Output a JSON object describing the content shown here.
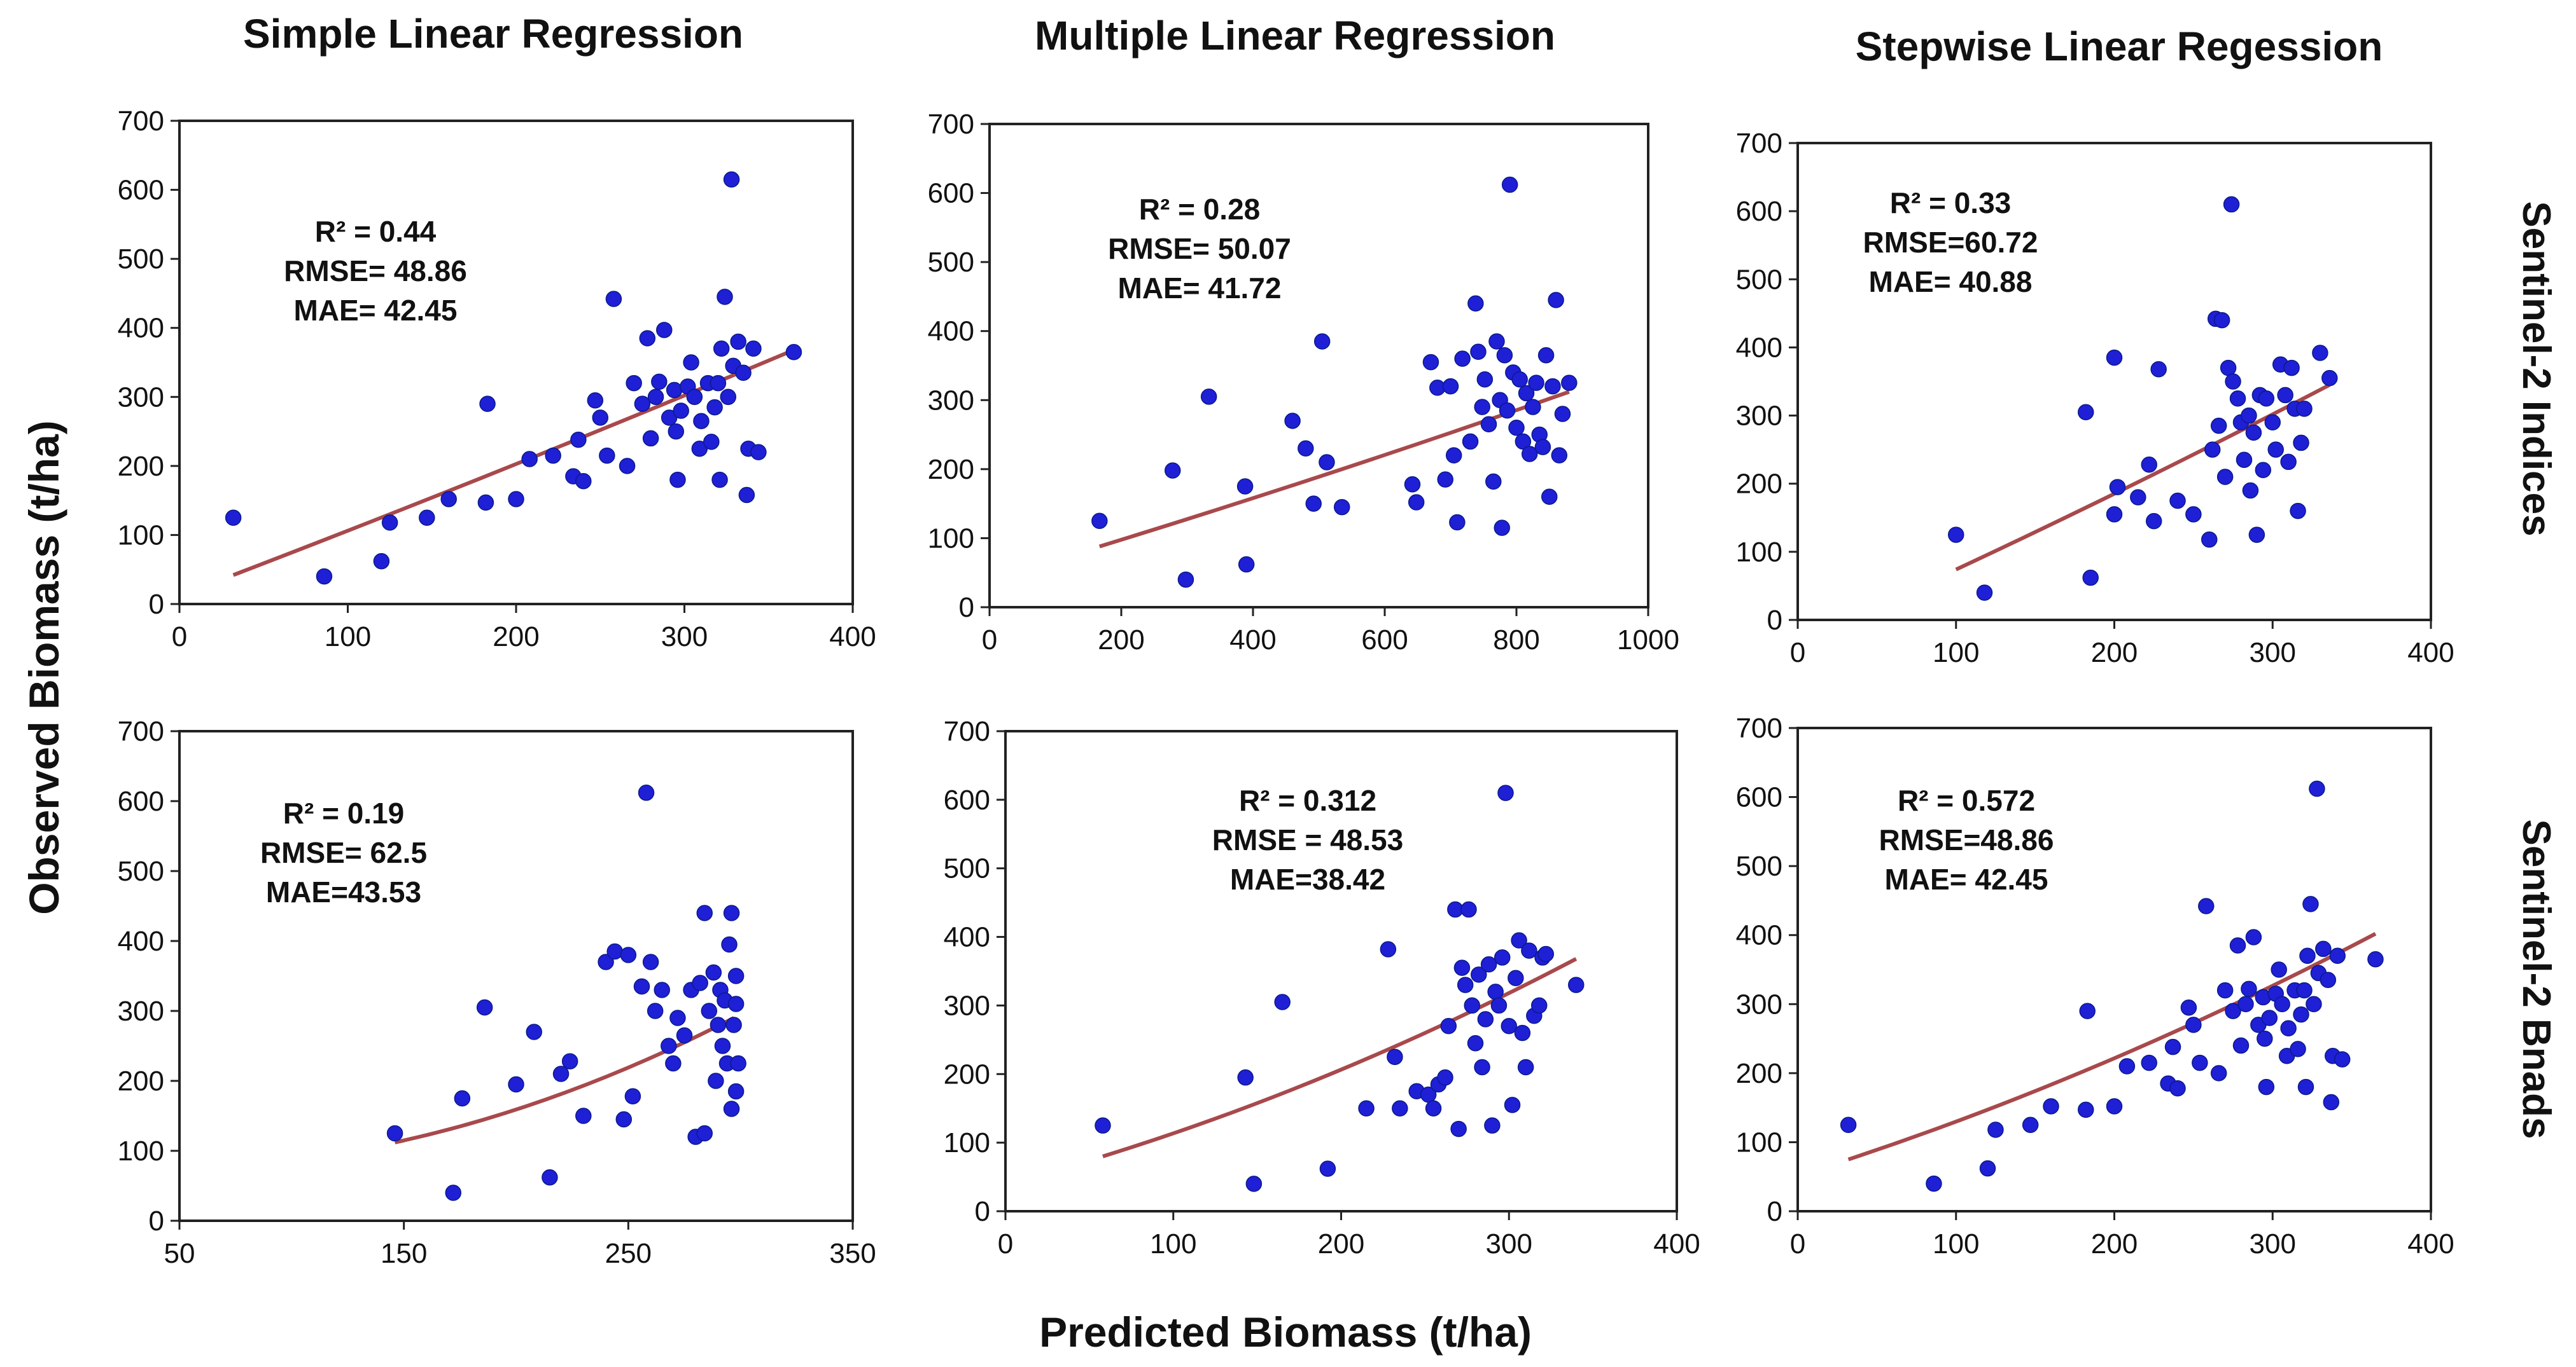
{
  "figure": {
    "column_titles": [
      "Simple Linear Regression",
      "Multiple Linear Regression",
      "Stepwise Linear Regession"
    ],
    "row_labels": [
      "Sentinel-2 Indices",
      "Sentinel-2 Bnads"
    ],
    "ylabel": "Observed Biomass (t/ha)",
    "xlabel": "Predicted Biomass (t/ha)"
  },
  "colors": {
    "points": "#1f1fd6",
    "fit_line": "#a8494c"
  },
  "chart_data": [
    {
      "type": "scatter",
      "title": "Simple Linear Regression",
      "row": "Sentinel-2 Indices",
      "stats": [
        "R² = 0.44",
        "RMSE= 48.86",
        "MAE= 42.45"
      ],
      "xlim": [
        0,
        400
      ],
      "xticks": [
        0,
        100,
        200,
        300,
        400
      ],
      "ylim": [
        0,
        700
      ],
      "yticks": [
        0,
        100,
        200,
        300,
        400,
        500,
        600,
        700
      ],
      "points": [
        [
          32,
          125
        ],
        [
          86,
          40
        ],
        [
          120,
          62
        ],
        [
          125,
          118
        ],
        [
          147,
          125
        ],
        [
          160,
          152
        ],
        [
          182,
          147
        ],
        [
          183,
          290
        ],
        [
          200,
          152
        ],
        [
          208,
          210
        ],
        [
          222,
          215
        ],
        [
          234,
          185
        ],
        [
          237,
          238
        ],
        [
          240,
          178
        ],
        [
          247,
          295
        ],
        [
          250,
          270
        ],
        [
          254,
          215
        ],
        [
          258,
          442
        ],
        [
          266,
          200
        ],
        [
          270,
          320
        ],
        [
          275,
          290
        ],
        [
          278,
          385
        ],
        [
          280,
          240
        ],
        [
          283,
          300
        ],
        [
          285,
          322
        ],
        [
          288,
          397
        ],
        [
          291,
          270
        ],
        [
          294,
          310
        ],
        [
          295,
          250
        ],
        [
          296,
          180
        ],
        [
          298,
          280
        ],
        [
          302,
          315
        ],
        [
          304,
          350
        ],
        [
          306,
          300
        ],
        [
          309,
          225
        ],
        [
          310,
          265
        ],
        [
          314,
          320
        ],
        [
          316,
          235
        ],
        [
          318,
          285
        ],
        [
          320,
          320
        ],
        [
          321,
          180
        ],
        [
          322,
          370
        ],
        [
          324,
          445
        ],
        [
          326,
          300
        ],
        [
          328,
          615
        ],
        [
          329,
          345
        ],
        [
          332,
          380
        ],
        [
          335,
          335
        ],
        [
          337,
          158
        ],
        [
          338,
          225
        ],
        [
          341,
          370
        ],
        [
          344,
          220
        ],
        [
          365,
          365
        ]
      ],
      "fit": [
        [
          32,
          42
        ],
        [
          365,
          368
        ]
      ]
    },
    {
      "type": "scatter",
      "title": "Multiple Linear Regression",
      "row": "Sentinel-2 Indices",
      "stats": [
        "R² = 0.28",
        "RMSE= 50.07",
        "MAE= 41.72"
      ],
      "xlim": [
        0,
        1000
      ],
      "xticks": [
        0,
        200,
        400,
        600,
        800,
        1000
      ],
      "ylim": [
        0,
        700
      ],
      "yticks": [
        0,
        100,
        200,
        300,
        400,
        500,
        600,
        700
      ],
      "points": [
        [
          167,
          125
        ],
        [
          278,
          198
        ],
        [
          298,
          40
        ],
        [
          333,
          305
        ],
        [
          388,
          175
        ],
        [
          390,
          62
        ],
        [
          460,
          270
        ],
        [
          480,
          230
        ],
        [
          492,
          150
        ],
        [
          505,
          385
        ],
        [
          512,
          210
        ],
        [
          535,
          145
        ],
        [
          642,
          178
        ],
        [
          648,
          152
        ],
        [
          670,
          355
        ],
        [
          680,
          318
        ],
        [
          692,
          185
        ],
        [
          700,
          320
        ],
        [
          705,
          220
        ],
        [
          710,
          123
        ],
        [
          718,
          360
        ],
        [
          730,
          240
        ],
        [
          738,
          440
        ],
        [
          742,
          370
        ],
        [
          748,
          290
        ],
        [
          752,
          330
        ],
        [
          758,
          265
        ],
        [
          765,
          182
        ],
        [
          770,
          385
        ],
        [
          775,
          300
        ],
        [
          778,
          115
        ],
        [
          782,
          365
        ],
        [
          786,
          285
        ],
        [
          790,
          612
        ],
        [
          795,
          340
        ],
        [
          800,
          260
        ],
        [
          805,
          330
        ],
        [
          810,
          240
        ],
        [
          815,
          310
        ],
        [
          820,
          222
        ],
        [
          825,
          290
        ],
        [
          830,
          325
        ],
        [
          835,
          250
        ],
        [
          840,
          232
        ],
        [
          845,
          365
        ],
        [
          850,
          160
        ],
        [
          855,
          320
        ],
        [
          860,
          445
        ],
        [
          865,
          220
        ],
        [
          870,
          280
        ],
        [
          880,
          325
        ]
      ],
      "fit": [
        [
          167,
          88
        ],
        [
          880,
          312
        ]
      ]
    },
    {
      "type": "scatter",
      "title": "Stepwise Linear Regession",
      "row": "Sentinel-2 Indices",
      "stats": [
        "R² = 0.33",
        "RMSE=60.72",
        "MAE= 40.88"
      ],
      "xlim": [
        0,
        400
      ],
      "xticks": [
        0,
        100,
        200,
        300,
        400
      ],
      "ylim": [
        0,
        700
      ],
      "yticks": [
        0,
        100,
        200,
        300,
        400,
        500,
        600,
        700
      ],
      "points": [
        [
          100,
          125
        ],
        [
          118,
          40
        ],
        [
          182,
          305
        ],
        [
          185,
          62
        ],
        [
          200,
          385
        ],
        [
          202,
          195
        ],
        [
          200,
          155
        ],
        [
          215,
          180
        ],
        [
          222,
          228
        ],
        [
          225,
          145
        ],
        [
          228,
          368
        ],
        [
          240,
          175
        ],
        [
          250,
          155
        ],
        [
          260,
          118
        ],
        [
          262,
          250
        ],
        [
          264,
          442
        ],
        [
          266,
          285
        ],
        [
          268,
          440
        ],
        [
          270,
          210
        ],
        [
          272,
          370
        ],
        [
          274,
          610
        ],
        [
          275,
          350
        ],
        [
          278,
          325
        ],
        [
          280,
          290
        ],
        [
          282,
          235
        ],
        [
          285,
          300
        ],
        [
          286,
          190
        ],
        [
          288,
          275
        ],
        [
          290,
          125
        ],
        [
          292,
          330
        ],
        [
          294,
          220
        ],
        [
          296,
          325
        ],
        [
          300,
          290
        ],
        [
          302,
          250
        ],
        [
          305,
          375
        ],
        [
          308,
          330
        ],
        [
          310,
          232
        ],
        [
          312,
          370
        ],
        [
          314,
          310
        ],
        [
          316,
          160
        ],
        [
          318,
          260
        ],
        [
          320,
          310
        ],
        [
          330,
          392
        ],
        [
          336,
          355
        ]
      ],
      "fit": [
        [
          100,
          74
        ],
        [
          336,
          345
        ]
      ]
    },
    {
      "type": "scatter",
      "title": "Simple Linear Regression",
      "row": "Sentinel-2 Bnads",
      "stats": [
        "R² = 0.19",
        "RMSE= 62.5",
        "MAE=43.53"
      ],
      "xlim": [
        50,
        350
      ],
      "xticks": [
        50,
        150,
        250,
        350
      ],
      "ylim": [
        0,
        700
      ],
      "yticks": [
        0,
        100,
        200,
        300,
        400,
        500,
        600,
        700
      ],
      "points": [
        [
          146,
          125
        ],
        [
          172,
          40
        ],
        [
          176,
          175
        ],
        [
          186,
          305
        ],
        [
          200,
          195
        ],
        [
          208,
          270
        ],
        [
          215,
          62
        ],
        [
          220,
          210
        ],
        [
          224,
          228
        ],
        [
          230,
          150
        ],
        [
          240,
          370
        ],
        [
          244,
          385
        ],
        [
          248,
          145
        ],
        [
          250,
          380
        ],
        [
          252,
          178
        ],
        [
          256,
          335
        ],
        [
          258,
          612
        ],
        [
          260,
          370
        ],
        [
          262,
          300
        ],
        [
          265,
          330
        ],
        [
          268,
          250
        ],
        [
          270,
          225
        ],
        [
          272,
          290
        ],
        [
          275,
          265
        ],
        [
          278,
          330
        ],
        [
          280,
          120
        ],
        [
          282,
          340
        ],
        [
          284,
          125
        ],
        [
          284,
          440
        ],
        [
          286,
          300
        ],
        [
          288,
          355
        ],
        [
          289,
          200
        ],
        [
          290,
          280
        ],
        [
          291,
          330
        ],
        [
          292,
          250
        ],
        [
          293,
          315
        ],
        [
          294,
          225
        ],
        [
          295,
          395
        ],
        [
          296,
          160
        ],
        [
          296,
          440
        ],
        [
          297,
          280
        ],
        [
          298,
          350
        ],
        [
          298,
          185
        ],
        [
          298,
          310
        ],
        [
          299,
          225
        ]
      ],
      "fit": [
        [
          146,
          112
        ],
        [
          297,
          290
        ]
      ]
    },
    {
      "type": "scatter",
      "title": "Multiple Linear Regression",
      "row": "Sentinel-2 Bnads",
      "stats": [
        "R² = 0.312",
        "RMSE = 48.53",
        "MAE=38.42"
      ],
      "xlim": [
        0,
        400
      ],
      "xticks": [
        0,
        100,
        200,
        300,
        400
      ],
      "ylim": [
        0,
        700
      ],
      "yticks": [
        0,
        100,
        200,
        300,
        400,
        500,
        600,
        700
      ],
      "points": [
        [
          58,
          125
        ],
        [
          143,
          195
        ],
        [
          148,
          40
        ],
        [
          165,
          305
        ],
        [
          192,
          62
        ],
        [
          215,
          150
        ],
        [
          228,
          382
        ],
        [
          232,
          225
        ],
        [
          235,
          150
        ],
        [
          245,
          175
        ],
        [
          252,
          170
        ],
        [
          255,
          150
        ],
        [
          258,
          185
        ],
        [
          262,
          195
        ],
        [
          264,
          270
        ],
        [
          268,
          440
        ],
        [
          270,
          120
        ],
        [
          272,
          355
        ],
        [
          274,
          330
        ],
        [
          276,
          440
        ],
        [
          278,
          300
        ],
        [
          280,
          245
        ],
        [
          282,
          345
        ],
        [
          284,
          210
        ],
        [
          286,
          280
        ],
        [
          288,
          360
        ],
        [
          290,
          125
        ],
        [
          292,
          320
        ],
        [
          294,
          300
        ],
        [
          296,
          370
        ],
        [
          298,
          610
        ],
        [
          300,
          270
        ],
        [
          302,
          155
        ],
        [
          304,
          340
        ],
        [
          306,
          395
        ],
        [
          308,
          260
        ],
        [
          310,
          210
        ],
        [
          312,
          380
        ],
        [
          315,
          285
        ],
        [
          318,
          300
        ],
        [
          320,
          370
        ],
        [
          322,
          375
        ],
        [
          340,
          330
        ]
      ],
      "fit": [
        [
          58,
          80
        ],
        [
          340,
          368
        ]
      ]
    },
    {
      "type": "scatter",
      "title": "Stepwise Linear Regession",
      "row": "Sentinel-2 Bnads",
      "stats": [
        "R² = 0.572",
        "RMSE=48.86",
        "MAE= 42.45"
      ],
      "xlim": [
        0,
        400
      ],
      "xticks": [
        0,
        100,
        200,
        300,
        400
      ],
      "ylim": [
        0,
        700
      ],
      "yticks": [
        0,
        100,
        200,
        300,
        400,
        500,
        600,
        700
      ],
      "points": [
        [
          32,
          125
        ],
        [
          86,
          40
        ],
        [
          120,
          62
        ],
        [
          125,
          118
        ],
        [
          147,
          125
        ],
        [
          160,
          152
        ],
        [
          182,
          147
        ],
        [
          183,
          290
        ],
        [
          200,
          152
        ],
        [
          208,
          210
        ],
        [
          222,
          215
        ],
        [
          234,
          185
        ],
        [
          237,
          238
        ],
        [
          240,
          178
        ],
        [
          247,
          295
        ],
        [
          250,
          270
        ],
        [
          254,
          215
        ],
        [
          258,
          442
        ],
        [
          266,
          200
        ],
        [
          270,
          320
        ],
        [
          275,
          290
        ],
        [
          278,
          385
        ],
        [
          280,
          240
        ],
        [
          283,
          300
        ],
        [
          285,
          322
        ],
        [
          288,
          397
        ],
        [
          291,
          270
        ],
        [
          294,
          310
        ],
        [
          295,
          250
        ],
        [
          296,
          180
        ],
        [
          298,
          280
        ],
        [
          302,
          315
        ],
        [
          304,
          350
        ],
        [
          306,
          300
        ],
        [
          309,
          225
        ],
        [
          310,
          265
        ],
        [
          314,
          320
        ],
        [
          316,
          235
        ],
        [
          318,
          285
        ],
        [
          320,
          320
        ],
        [
          321,
          180
        ],
        [
          322,
          370
        ],
        [
          324,
          445
        ],
        [
          326,
          300
        ],
        [
          328,
          612
        ],
        [
          329,
          345
        ],
        [
          332,
          380
        ],
        [
          335,
          335
        ],
        [
          337,
          158
        ],
        [
          338,
          225
        ],
        [
          341,
          370
        ],
        [
          344,
          220
        ],
        [
          365,
          365
        ]
      ],
      "fit": [
        [
          32,
          75
        ],
        [
          365,
          402
        ]
      ]
    }
  ]
}
